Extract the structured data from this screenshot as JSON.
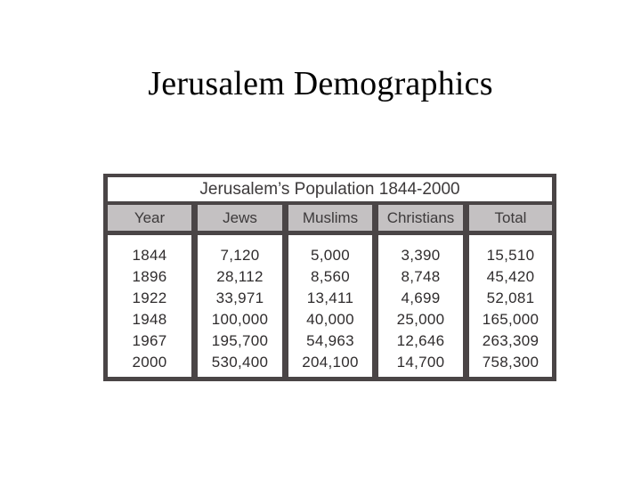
{
  "slide": {
    "title": "Jerusalem Demographics"
  },
  "table": {
    "title": "Jerusalem’s Population 1844-2000",
    "headers": [
      "Year",
      "Jews",
      "Muslims",
      "Christians",
      "Total"
    ],
    "columns": [
      [
        "1844",
        "1896",
        "1922",
        "1948",
        "1967",
        "2000"
      ],
      [
        "7,120",
        "28,112",
        "33,971",
        "100,000",
        "195,700",
        "530,400"
      ],
      [
        "5,000",
        "8,560",
        "13,411",
        "40,000",
        "54,963",
        "204,100"
      ],
      [
        "3,390",
        "8,748",
        "4,699",
        "25,000",
        "12,646",
        "14,700"
      ],
      [
        "15,510",
        "45,420",
        "52,081",
        "165,000",
        "263,309",
        "758,300"
      ]
    ]
  },
  "colors": {
    "frame": "#4a4546",
    "header_fill": "#c4c1c2",
    "text": "#3d3a3b"
  }
}
